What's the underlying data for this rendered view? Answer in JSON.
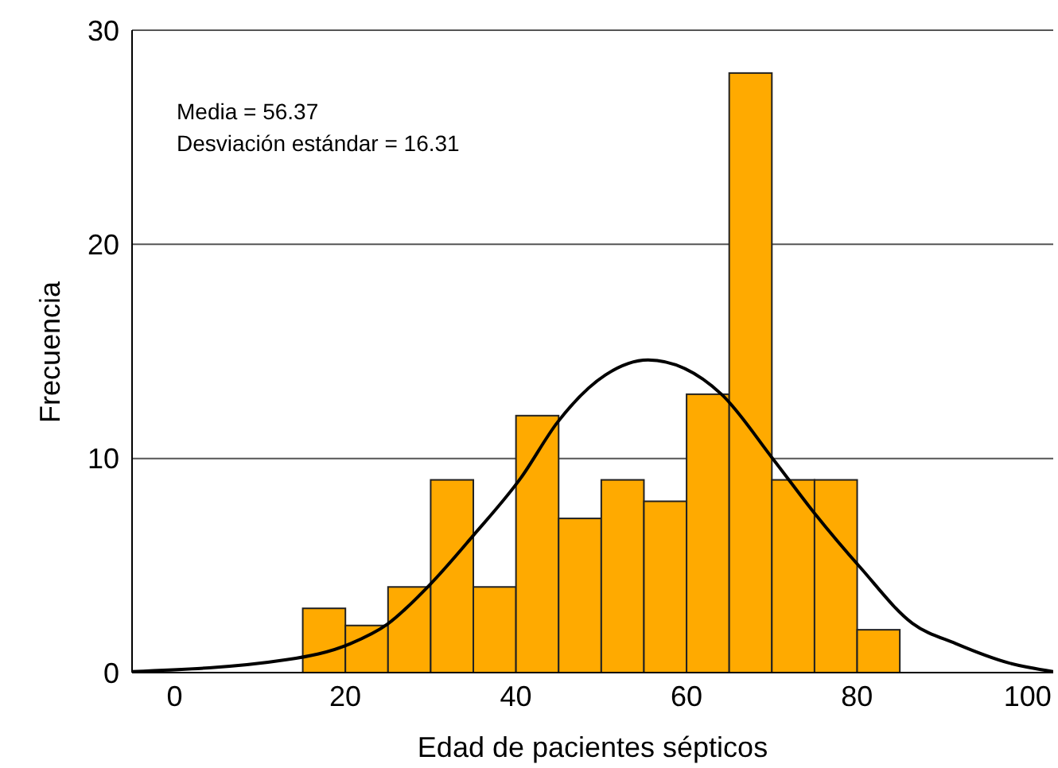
{
  "chart_data": {
    "type": "histogram",
    "xlabel": "Edad de pacientes sépticos",
    "ylabel": "Frecuencia",
    "annotations": [
      "Media = 56.37",
      "Desviación estándar = 16.31"
    ],
    "bins": [
      15,
      20,
      25,
      30,
      35,
      40,
      45,
      50,
      55,
      60,
      65,
      70,
      75,
      80,
      85
    ],
    "values": [
      3,
      2.2,
      4,
      9,
      4,
      12,
      7.2,
      9,
      8,
      13,
      28,
      9,
      9,
      2
    ],
    "color": "#ffaa00",
    "series": [
      {
        "type": "line",
        "color": "#000000",
        "x": [
          -5,
          13.1,
          20.6,
          24.9,
          29.9,
          35,
          40.6,
          44.9,
          50.5,
          55.5,
          64.1,
          70.1,
          75.1,
          80.4,
          86.5,
          91.6,
          97.8,
          103
        ],
        "values": [
          0.05,
          0.6,
          1.35,
          2.25,
          4.1,
          6.4,
          9.1,
          11.7,
          13.9,
          14.6,
          13,
          10,
          7.4,
          4.9,
          2.3,
          1.35,
          0.45,
          0.05
        ]
      }
    ],
    "xlim": [
      -5,
      103
    ],
    "xticks": [
      0,
      20,
      40,
      60,
      80,
      100
    ],
    "ylim": [
      0,
      30
    ],
    "yticks": [
      0,
      10,
      20,
      30
    ],
    "grid": "y"
  }
}
